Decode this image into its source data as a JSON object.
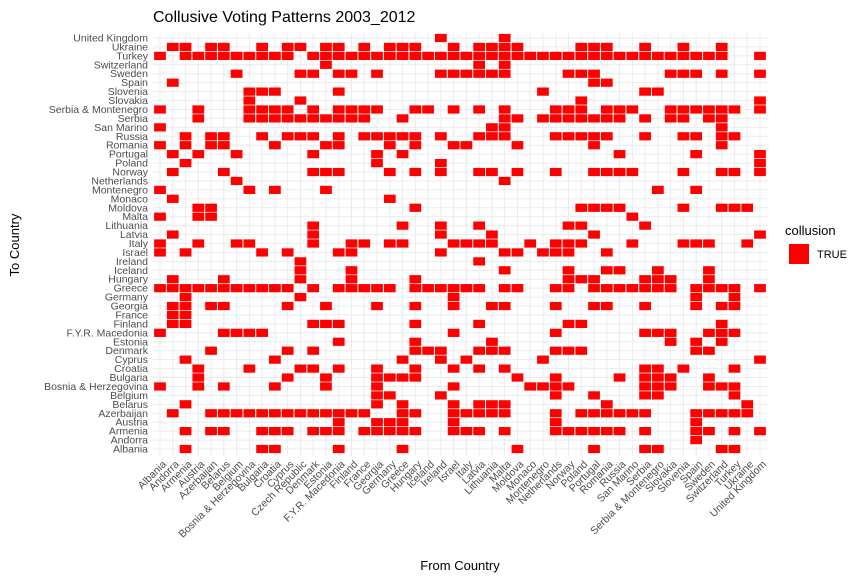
{
  "chart_data": {
    "type": "heatmap",
    "title": "Collusive Voting Patterns 2003_2012",
    "xlabel": "From Country",
    "ylabel": "To Country",
    "grid": true,
    "legend": {
      "title": "collusion",
      "entries": [
        {
          "label": "TRUE",
          "color": "#ff0000"
        }
      ],
      "placement": "right"
    },
    "x_categories": [
      "Albania",
      "Andorra",
      "Armenia",
      "Austria",
      "Azerbaijan",
      "Belarus",
      "Belgium",
      "Bosnia & Herzegovina",
      "Bulgaria",
      "Croatia",
      "Cyprus",
      "Czech Republic",
      "Denmark",
      "Estonia",
      "F.Y.R. Macedonia",
      "Finland",
      "France",
      "Georgia",
      "Germany",
      "Greece",
      "Hungary",
      "Iceland",
      "Ireland",
      "Israel",
      "Italy",
      "Latvia",
      "Lithuania",
      "Malta",
      "Moldova",
      "Monaco",
      "Montenegro",
      "Netherlands",
      "Norway",
      "Poland",
      "Portugal",
      "Romania",
      "Russia",
      "San Marino",
      "Serbia",
      "Serbia & Montenegro",
      "Slovakia",
      "Slovenia",
      "Spain",
      "Sweden",
      "Switzerland",
      "Turkey",
      "Ukraine",
      "United Kingdom"
    ],
    "y_categories": [
      "Albania",
      "Andorra",
      "Armenia",
      "Austria",
      "Azerbaijan",
      "Belarus",
      "Belgium",
      "Bosnia & Herzegovina",
      "Bulgaria",
      "Croatia",
      "Cyprus",
      "Denmark",
      "Estonia",
      "F.Y.R. Macedonia",
      "Finland",
      "France",
      "Georgia",
      "Germany",
      "Greece",
      "Hungary",
      "Iceland",
      "Ireland",
      "Israel",
      "Italy",
      "Latvia",
      "Lithuania",
      "Malta",
      "Moldova",
      "Monaco",
      "Montenegro",
      "Netherlands",
      "Norway",
      "Poland",
      "Portugal",
      "Romania",
      "Russia",
      "San Marino",
      "Serbia",
      "Serbia & Montenegro",
      "Slovakia",
      "Slovenia",
      "Spain",
      "Sweden",
      "Switzerland",
      "Turkey",
      "Ukraine",
      "United Kingdom"
    ],
    "cells": [
      {
        "to": "United Kingdom",
        "from": [
          "Ireland",
          "Malta"
        ]
      },
      {
        "to": "Ukraine",
        "from": [
          "Andorra",
          "Armenia",
          "Azerbaijan",
          "Belarus",
          "Bulgaria",
          "Cyprus",
          "Czech Republic",
          "Estonia",
          "F.Y.R. Macedonia",
          "France",
          "Germany",
          "Greece",
          "Hungary",
          "Israel",
          "Latvia",
          "Lithuania",
          "Malta",
          "Moldova",
          "Poland",
          "Portugal",
          "Romania",
          "Serbia",
          "Slovenia",
          "Switzerland"
        ]
      },
      {
        "to": "Turkey",
        "from": [
          "Albania",
          "Armenia",
          "Austria",
          "Azerbaijan",
          "Belarus",
          "Belgium",
          "Bosnia & Herzegovina",
          "Bulgaria",
          "Croatia",
          "Cyprus",
          "Denmark",
          "Estonia",
          "F.Y.R. Macedonia",
          "Finland",
          "France",
          "Georgia",
          "Germany",
          "Greece",
          "Hungary",
          "Iceland",
          "Ireland",
          "Israel",
          "Italy",
          "Latvia",
          "Lithuania",
          "Malta",
          "Moldova",
          "Monaco",
          "Montenegro",
          "Netherlands",
          "Norway",
          "Poland",
          "Portugal",
          "Romania",
          "Russia",
          "San Marino",
          "Serbia",
          "Serbia & Montenegro",
          "Slovakia",
          "Slovenia",
          "Spain",
          "Sweden",
          "Switzerland",
          "United Kingdom"
        ]
      },
      {
        "to": "Switzerland",
        "from": [
          "Estonia",
          "Latvia",
          "Malta"
        ]
      },
      {
        "to": "Sweden",
        "from": [
          "Belgium",
          "Czech Republic",
          "Denmark",
          "F.Y.R. Macedonia",
          "Finland",
          "Georgia",
          "Ireland",
          "Israel",
          "Italy",
          "Latvia",
          "Lithuania",
          "Malta",
          "Norway",
          "Poland",
          "Portugal",
          "Slovakia",
          "Slovenia",
          "Spain",
          "Switzerland",
          "United Kingdom"
        ]
      },
      {
        "to": "Spain",
        "from": [
          "Andorra",
          "Portugal",
          "Romania"
        ]
      },
      {
        "to": "Slovenia",
        "from": [
          "Bosnia & Herzegovina",
          "Bulgaria",
          "Croatia",
          "F.Y.R. Macedonia",
          "Montenegro",
          "Serbia",
          "Serbia & Montenegro"
        ]
      },
      {
        "to": "Slovakia",
        "from": [
          "Bosnia & Herzegovina",
          "Czech Republic",
          "Poland",
          "United Kingdom"
        ]
      },
      {
        "to": "Serbia & Montenegro",
        "from": [
          "Albania",
          "Austria",
          "Bosnia & Herzegovina",
          "Bulgaria",
          "Croatia",
          "Cyprus",
          "Denmark",
          "F.Y.R. Macedonia",
          "Finland",
          "France",
          "Georgia",
          "Hungary",
          "Iceland",
          "Israel",
          "Latvia",
          "Malta",
          "Netherlands",
          "Norway",
          "Poland",
          "Romania",
          "Russia",
          "San Marino",
          "Slovakia",
          "Slovenia",
          "Spain",
          "Sweden",
          "Switzerland",
          "Turkey",
          "United Kingdom"
        ]
      },
      {
        "to": "Serbia",
        "from": [
          "Austria",
          "Bosnia & Herzegovina",
          "Bulgaria",
          "Croatia",
          "Cyprus",
          "Czech Republic",
          "Denmark",
          "Estonia",
          "F.Y.R. Macedonia",
          "Finland",
          "France",
          "Greece",
          "Malta",
          "Moldova",
          "Montenegro",
          "Netherlands",
          "Norway",
          "Poland",
          "Portugal",
          "Romania",
          "Russia",
          "Serbia",
          "Slovakia",
          "Slovenia",
          "Sweden",
          "Switzerland"
        ]
      },
      {
        "to": "San Marino",
        "from": [
          "Albania",
          "Lithuania",
          "Malta",
          "Switzerland"
        ]
      },
      {
        "to": "Russia",
        "from": [
          "Armenia",
          "Azerbaijan",
          "Belarus",
          "Bulgaria",
          "Cyprus",
          "Czech Republic",
          "Denmark",
          "F.Y.R. Macedonia",
          "France",
          "Georgia",
          "Germany",
          "Greece",
          "Hungary",
          "Ireland",
          "Latvia",
          "Lithuania",
          "Malta",
          "Netherlands",
          "Norway",
          "Poland",
          "Portugal",
          "Romania",
          "Serbia",
          "Slovenia",
          "Spain",
          "Switzerland",
          "Turkey"
        ]
      },
      {
        "to": "Romania",
        "from": [
          "Albania",
          "Armenia",
          "Azerbaijan",
          "Belarus",
          "Croatia",
          "Estonia",
          "F.Y.R. Macedonia",
          "Germany",
          "Hungary",
          "Israel",
          "Italy",
          "Moldova",
          "Portugal",
          "Switzerland"
        ]
      },
      {
        "to": "Portugal",
        "from": [
          "Andorra",
          "Austria",
          "Belgium",
          "Denmark",
          "Georgia",
          "Greece",
          "Russia",
          "Spain",
          "United Kingdom"
        ]
      },
      {
        "to": "Poland",
        "from": [
          "Armenia",
          "Georgia",
          "Ireland",
          "United Kingdom"
        ]
      },
      {
        "to": "Norway",
        "from": [
          "Andorra",
          "Belarus",
          "Denmark",
          "Estonia",
          "F.Y.R. Macedonia",
          "Germany",
          "Hungary",
          "Ireland",
          "Latvia",
          "Lithuania",
          "Moldova",
          "Netherlands",
          "Portugal",
          "Romania",
          "Russia",
          "San Marino",
          "Slovenia",
          "Switzerland",
          "Turkey",
          "United Kingdom"
        ]
      },
      {
        "to": "Netherlands",
        "from": [
          "Belgium",
          "Malta"
        ]
      },
      {
        "to": "Montenegro",
        "from": [
          "Albania",
          "Bosnia & Herzegovina",
          "Croatia",
          "Estonia",
          "Serbia & Montenegro",
          "Spain"
        ]
      },
      {
        "to": "Monaco",
        "from": [
          "Andorra",
          "Germany"
        ]
      },
      {
        "to": "Moldova",
        "from": [
          "Austria",
          "Azerbaijan",
          "Hungary",
          "Poland",
          "Portugal",
          "Romania",
          "Russia",
          "Slovenia",
          "Switzerland",
          "Turkey",
          "Ukraine"
        ]
      },
      {
        "to": "Malta",
        "from": [
          "Albania",
          "Austria",
          "Azerbaijan",
          "San Marino"
        ]
      },
      {
        "to": "Lithuania",
        "from": [
          "Denmark",
          "Greece",
          "Ireland",
          "Latvia",
          "Norway",
          "Poland",
          "Serbia"
        ]
      },
      {
        "to": "Latvia",
        "from": [
          "Andorra",
          "Denmark",
          "Ireland",
          "Lithuania",
          "Portugal",
          "United Kingdom"
        ]
      },
      {
        "to": "Italy",
        "from": [
          "Albania",
          "Austria",
          "Belgium",
          "Bosnia & Herzegovina",
          "Denmark",
          "Finland",
          "France",
          "Germany",
          "Greece",
          "Israel",
          "Italy",
          "Latvia",
          "Lithuania",
          "Monaco",
          "Netherlands",
          "Norway",
          "Poland",
          "San Marino",
          "Slovenia",
          "Spain",
          "Sweden",
          "Ukraine"
        ]
      },
      {
        "to": "Israel",
        "from": [
          "Albania",
          "Armenia",
          "Bulgaria",
          "Cyprus",
          "F.Y.R. Macedonia",
          "Finland",
          "Ireland",
          "Malta",
          "Moldova",
          "Montenegro",
          "Netherlands",
          "Norway",
          "Romania"
        ]
      },
      {
        "to": "Ireland",
        "from": [
          "Czech Republic",
          "Latvia"
        ]
      },
      {
        "to": "Iceland",
        "from": [
          "Czech Republic",
          "Finland",
          "Malta",
          "Norway",
          "Romania",
          "Russia",
          "Serbia & Montenegro",
          "Sweden"
        ]
      },
      {
        "to": "Hungary",
        "from": [
          "Andorra",
          "Belarus",
          "Czech Republic",
          "Finland",
          "Hungary",
          "Norway",
          "Poland",
          "Portugal",
          "Serbia",
          "Serbia & Montenegro",
          "Slovakia",
          "Sweden"
        ]
      },
      {
        "to": "Greece",
        "from": [
          "Albania",
          "Andorra",
          "Armenia",
          "Austria",
          "Azerbaijan",
          "Belarus",
          "Belgium",
          "Bosnia & Herzegovina",
          "Bulgaria",
          "Croatia",
          "Cyprus",
          "Denmark",
          "F.Y.R. Macedonia",
          "Finland",
          "France",
          "Georgia",
          "Germany",
          "Hungary",
          "Iceland",
          "Ireland",
          "Israel",
          "Italy",
          "Latvia",
          "Malta",
          "Moldova",
          "Netherlands",
          "Norway",
          "Portugal",
          "Romania",
          "Russia",
          "San Marino",
          "Serbia",
          "Serbia & Montenegro",
          "Slovakia",
          "Spain",
          "Sweden",
          "Switzerland",
          "Turkey",
          "United Kingdom"
        ]
      },
      {
        "to": "Germany",
        "from": [
          "Armenia",
          "Czech Republic",
          "Israel",
          "Spain",
          "Turkey"
        ]
      },
      {
        "to": "Georgia",
        "from": [
          "Andorra",
          "Armenia",
          "Azerbaijan",
          "Belarus",
          "Cyprus",
          "Estonia",
          "Georgia",
          "Hungary",
          "Israel",
          "Lithuania",
          "Malta",
          "Netherlands",
          "Portugal",
          "Romania",
          "Serbia",
          "Spain",
          "Switzerland",
          "Turkey"
        ]
      },
      {
        "to": "France",
        "from": [
          "Andorra",
          "Armenia"
        ]
      },
      {
        "to": "Finland",
        "from": [
          "Andorra",
          "Armenia",
          "Denmark",
          "Estonia",
          "F.Y.R. Macedonia",
          "Hungary",
          "Latvia",
          "Norway",
          "Poland",
          "Switzerland"
        ]
      },
      {
        "to": "F.Y.R. Macedonia",
        "from": [
          "Albania",
          "Belarus",
          "Belgium",
          "Bosnia & Herzegovina",
          "Bulgaria",
          "Israel",
          "Netherlands",
          "Serbia",
          "Serbia & Montenegro",
          "Slovakia",
          "Sweden",
          "Switzerland",
          "Turkey"
        ]
      },
      {
        "to": "Estonia",
        "from": [
          "F.Y.R. Macedonia",
          "Hungary",
          "Lithuania",
          "Slovakia",
          "Spain",
          "Switzerland"
        ]
      },
      {
        "to": "Denmark",
        "from": [
          "Azerbaijan",
          "Cyprus",
          "Denmark",
          "Hungary",
          "Iceland",
          "Ireland",
          "Latvia",
          "Lithuania",
          "Malta",
          "Netherlands",
          "Norway",
          "Poland",
          "Spain",
          "Sweden"
        ]
      },
      {
        "to": "Cyprus",
        "from": [
          "Armenia",
          "Croatia",
          "Greece",
          "Ireland",
          "Italy",
          "Montenegro",
          "United Kingdom"
        ]
      },
      {
        "to": "Croatia",
        "from": [
          "Austria",
          "Bosnia & Herzegovina",
          "Czech Republic",
          "Denmark",
          "F.Y.R. Macedonia",
          "Georgia",
          "Hungary",
          "Israel",
          "Latvia",
          "Malta",
          "Serbia",
          "Serbia & Montenegro",
          "Slovenia",
          "Turkey"
        ]
      },
      {
        "to": "Bulgaria",
        "from": [
          "Austria",
          "Cyprus",
          "Estonia",
          "Georgia",
          "Germany",
          "Greece",
          "Hungary",
          "Moldova",
          "Netherlands",
          "Russia",
          "Serbia",
          "Serbia & Montenegro",
          "Slovakia",
          "Sweden"
        ]
      },
      {
        "to": "Bosnia & Herzegovina",
        "from": [
          "Albania",
          "Austria",
          "Belarus",
          "Croatia",
          "Estonia",
          "Georgia",
          "Israel",
          "Montenegro",
          "Monaco",
          "Netherlands",
          "Norway",
          "Serbia",
          "Serbia & Montenegro",
          "Slovakia",
          "Sweden",
          "Switzerland",
          "Turkey"
        ]
      },
      {
        "to": "Belgium",
        "from": [
          "Georgia",
          "Germany",
          "Ireland",
          "Netherlands",
          "Portugal",
          "Serbia",
          "Serbia & Montenegro",
          "Turkey"
        ]
      },
      {
        "to": "Belarus",
        "from": [
          "Armenia",
          "Georgia",
          "Greece",
          "Israel",
          "Latvia",
          "Lithuania",
          "Malta",
          "Romania",
          "Ukraine"
        ]
      },
      {
        "to": "Azerbaijan",
        "from": [
          "Andorra",
          "Azerbaijan",
          "Belarus",
          "Belgium",
          "Bosnia & Herzegovina",
          "Bulgaria",
          "Croatia",
          "Cyprus",
          "Czech Republic",
          "Denmark",
          "Estonia",
          "F.Y.R. Macedonia",
          "Finland",
          "France",
          "Greece",
          "Hungary",
          "Israel",
          "Italy",
          "Latvia",
          "Lithuania",
          "Malta",
          "Netherlands",
          "Poland",
          "Portugal",
          "Romania",
          "Russia",
          "San Marino",
          "Serbia",
          "Spain",
          "Sweden",
          "Switzerland",
          "Turkey",
          "Ukraine"
        ]
      },
      {
        "to": "Austria",
        "from": [
          "F.Y.R. Macedonia",
          "Georgia",
          "Germany",
          "Greece",
          "Israel",
          "Netherlands",
          "Spain"
        ]
      },
      {
        "to": "Armenia",
        "from": [
          "Armenia",
          "Azerbaijan",
          "Belarus",
          "Bulgaria",
          "Croatia",
          "Cyprus",
          "Denmark",
          "Estonia",
          "F.Y.R. Macedonia",
          "France",
          "Georgia",
          "Germany",
          "Greece",
          "Hungary",
          "Israel",
          "Italy",
          "Latvia",
          "Malta",
          "Netherlands",
          "Norway",
          "Poland",
          "Portugal",
          "Romania",
          "Russia",
          "Serbia",
          "Spain",
          "Sweden",
          "Turkey",
          "United Kingdom"
        ]
      },
      {
        "to": "Andorra",
        "from": [
          "Spain"
        ]
      },
      {
        "to": "Albania",
        "from": [
          "Armenia",
          "Bulgaria",
          "Croatia",
          "F.Y.R. Macedonia",
          "Greece",
          "Moldova",
          "Portugal",
          "Serbia",
          "Serbia & Montenegro",
          "Switzerland",
          "Turkey"
        ]
      }
    ]
  }
}
